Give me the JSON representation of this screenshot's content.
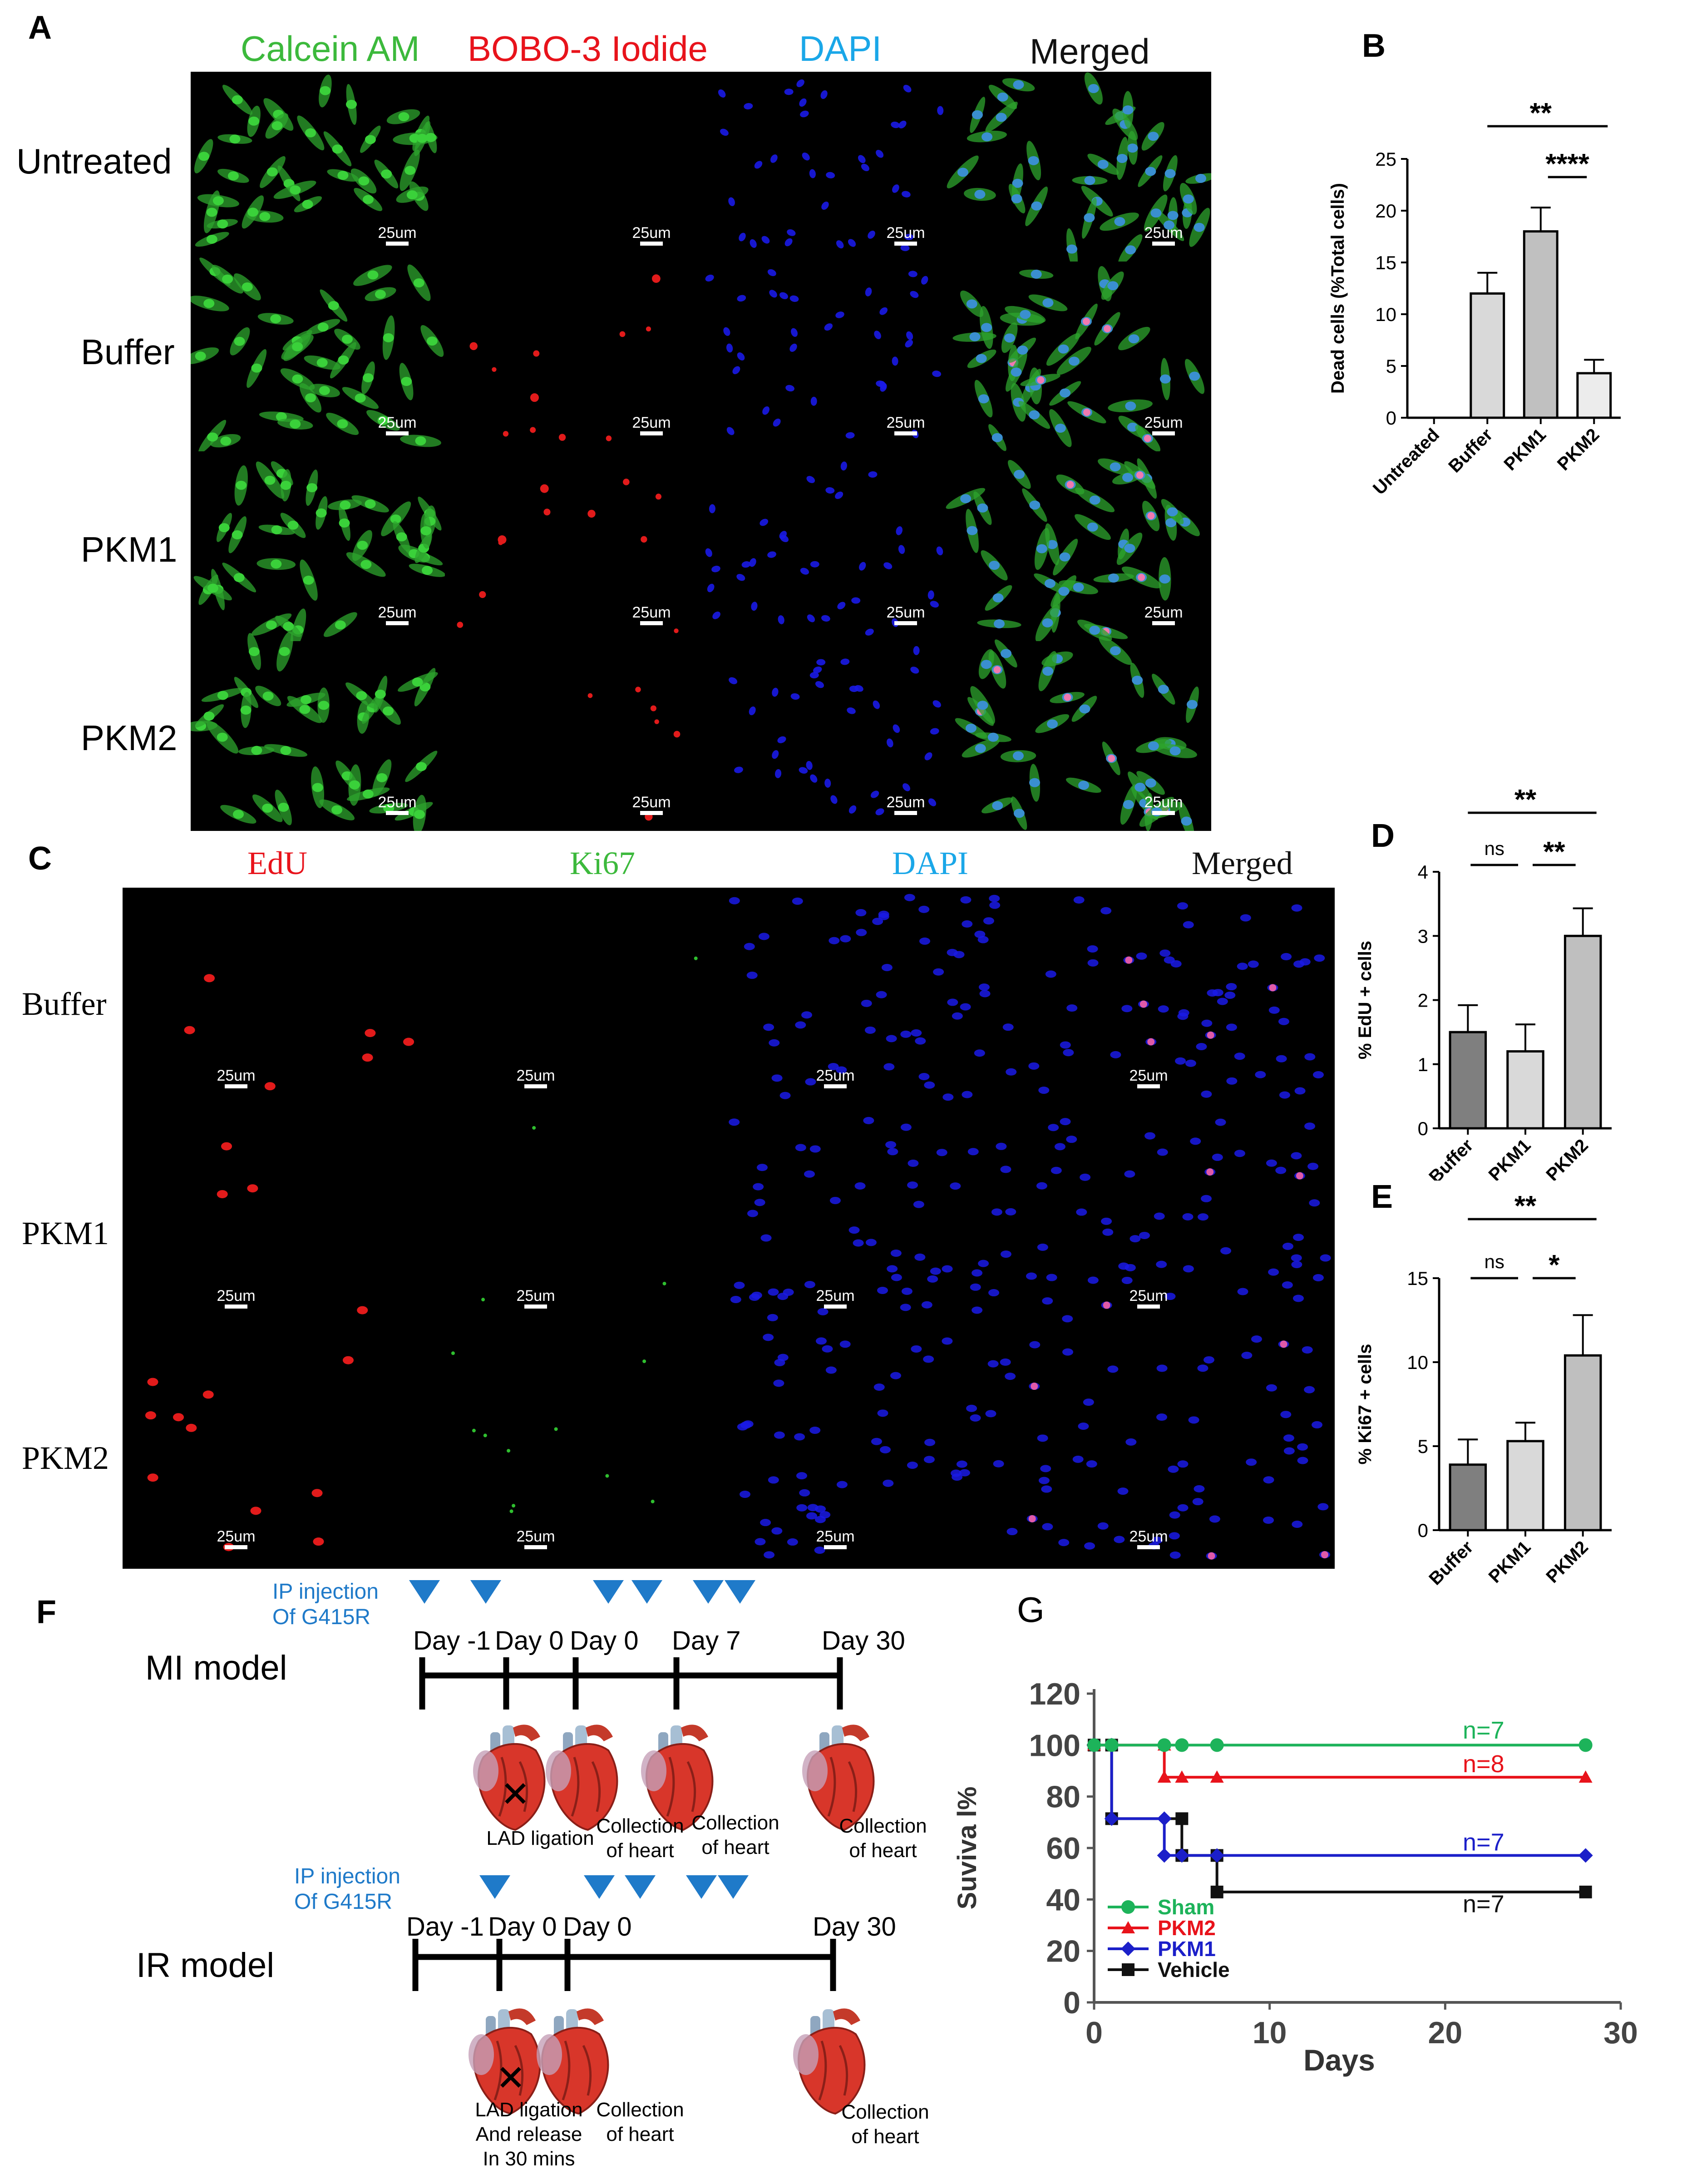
{
  "panels": {
    "A": {
      "label": "A",
      "columns": [
        "Calcein AM",
        "BOBO-3 Iodide",
        "DAPI",
        "Merged"
      ],
      "column_colors": [
        "#3cb93c",
        "#e8131b",
        "#1aa7e8",
        "#111111"
      ],
      "rows": [
        "Untreated",
        "Buffer",
        "PKM1",
        "PKM2"
      ],
      "scale_bar": "25um"
    },
    "B": {
      "label": "B"
    },
    "C": {
      "label": "C",
      "columns": [
        "EdU",
        "Ki67",
        "DAPI",
        "Merged"
      ],
      "column_colors": [
        "#e8131b",
        "#3cb93c",
        "#1aa7e8",
        "#111111"
      ],
      "rows": [
        "Buffer",
        "PKM1",
        "PKM2"
      ],
      "scale_bar": "25um"
    },
    "D": {
      "label": "D"
    },
    "E": {
      "label": "E"
    },
    "F": {
      "label": "F",
      "ip_label_line1": "IP injection",
      "ip_label_line2": "Of G415R",
      "mi": {
        "title": "MI model",
        "days": [
          "Day -1",
          "Day 0",
          "Day 0",
          "Day 7",
          "Day 30"
        ],
        "captions": [
          [
            "LAD ligation"
          ],
          [
            "Collection",
            "of heart"
          ],
          [
            "Collection",
            "of heart"
          ],
          [
            "Collection",
            "of heart"
          ]
        ]
      },
      "ir": {
        "title": "IR model",
        "days": [
          "Day -1",
          "Day 0",
          "Day 0",
          "Day 30"
        ],
        "captions": [
          [
            "LAD ligation",
            "And release",
            "In 30 mins"
          ],
          [
            "Collection",
            "of heart"
          ],
          [
            "Collection",
            "of heart"
          ]
        ]
      }
    },
    "G": {
      "label": "G"
    }
  },
  "chart_data": [
    {
      "id": "B",
      "type": "bar",
      "categories": [
        "Untreated",
        "Buffer",
        "PKM1",
        "PKM2"
      ],
      "values": [
        0,
        12,
        18,
        4.3
      ],
      "errors": [
        0,
        2,
        2.3,
        1.3
      ],
      "fills": [
        "#ffffff",
        "#d9d9d9",
        "#c0c0c0",
        "#ececec"
      ],
      "ylabel": "Dead cells (%Total cells)",
      "ylim": [
        0,
        25
      ],
      "yticks": [
        0,
        5,
        10,
        15,
        20,
        25
      ],
      "significance": [
        {
          "from": 1,
          "to": 3,
          "label": "**"
        },
        {
          "from": 2,
          "to": 3,
          "label": "****"
        }
      ]
    },
    {
      "id": "D",
      "type": "bar",
      "categories": [
        "Buffer",
        "PKM1",
        "PKM2"
      ],
      "values": [
        1.5,
        1.2,
        3.0
      ],
      "errors": [
        0.42,
        0.42,
        0.43
      ],
      "fills": [
        "#7f7f7f",
        "#d9d9d9",
        "#bfbfbf"
      ],
      "ylabel": "% EdU + cells",
      "ylim": [
        0,
        4
      ],
      "yticks": [
        0,
        1,
        2,
        3,
        4
      ],
      "significance": [
        {
          "from": 0,
          "to": 2,
          "label": "**"
        },
        {
          "from": 0,
          "to": 1,
          "label": "ns"
        },
        {
          "from": 1,
          "to": 2,
          "label": "**"
        }
      ]
    },
    {
      "id": "E",
      "type": "bar",
      "categories": [
        "Buffer",
        "PKM1",
        "PKM2"
      ],
      "values": [
        3.9,
        5.3,
        10.4
      ],
      "errors": [
        1.5,
        1.1,
        2.4
      ],
      "fills": [
        "#7f7f7f",
        "#d9d9d9",
        "#bfbfbf"
      ],
      "ylabel": "% Ki67 + cells",
      "ylim": [
        0,
        15
      ],
      "yticks": [
        0,
        5,
        10,
        15
      ],
      "significance": [
        {
          "from": 0,
          "to": 2,
          "label": "**"
        },
        {
          "from": 0,
          "to": 1,
          "label": "ns"
        },
        {
          "from": 1,
          "to": 2,
          "label": "*"
        }
      ]
    },
    {
      "id": "G",
      "type": "line",
      "title": "G",
      "xlabel": "Days",
      "ylabel": "Suviva l%",
      "xlim": [
        0,
        30
      ],
      "ylim": [
        0,
        120
      ],
      "xticks": [
        0,
        10,
        20,
        30
      ],
      "yticks": [
        0,
        20,
        40,
        60,
        80,
        100,
        120
      ],
      "series": [
        {
          "name": "Sham",
          "color": "#1db35a",
          "marker": "circle",
          "points": [
            [
              0,
              100
            ],
            [
              1,
              100
            ],
            [
              4,
              100
            ],
            [
              5,
              100
            ],
            [
              7,
              100
            ],
            [
              28,
              100
            ]
          ],
          "n_label": "n=7",
          "label_x": 21,
          "label_y": 102.5
        },
        {
          "name": "PKM2",
          "color": "#e8131b",
          "marker": "triangle",
          "points": [
            [
              0,
              100
            ],
            [
              4,
              100
            ],
            [
              4,
              87.5
            ],
            [
              5,
              87.5
            ],
            [
              7,
              87.5
            ],
            [
              28,
              87.5
            ]
          ],
          "n_label": "n=8",
          "label_x": 21,
          "label_y": 89.5
        },
        {
          "name": "PKM1",
          "color": "#1b1fc9",
          "marker": "diamond",
          "points": [
            [
              0,
              100
            ],
            [
              1,
              100
            ],
            [
              1,
              71.4
            ],
            [
              4,
              71.4
            ],
            [
              4,
              57.1
            ],
            [
              5,
              57.1
            ],
            [
              7,
              57.1
            ],
            [
              28,
              57.1
            ]
          ],
          "n_label": "n=7",
          "label_x": 21,
          "label_y": 59
        },
        {
          "name": "Vehicle",
          "color": "#111111",
          "marker": "square",
          "points": [
            [
              0,
              100
            ],
            [
              1,
              100
            ],
            [
              1,
              71.4
            ],
            [
              5,
              71.4
            ],
            [
              5,
              57.1
            ],
            [
              7,
              57.1
            ],
            [
              7,
              42.9
            ],
            [
              28,
              42.9
            ]
          ],
          "n_label": "n=7",
          "label_x": 21,
          "label_y": 35
        }
      ]
    }
  ]
}
